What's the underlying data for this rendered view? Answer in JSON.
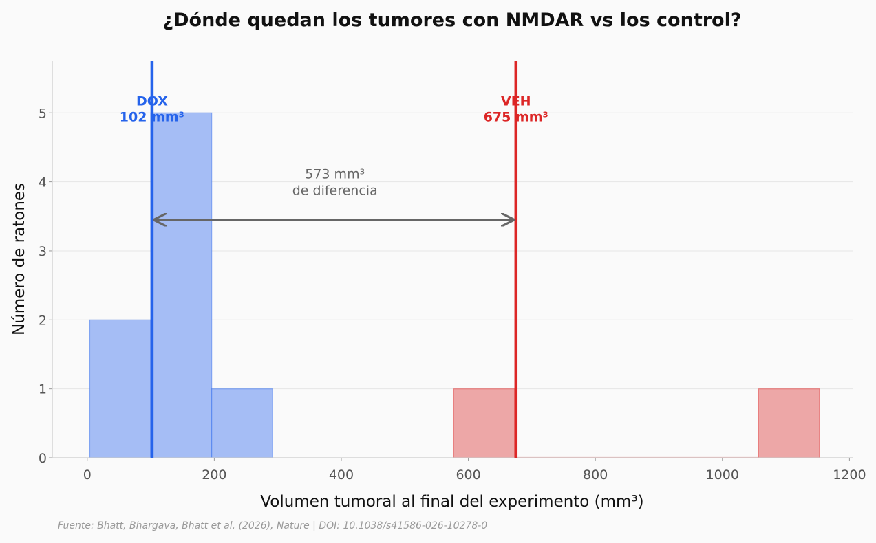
{
  "chart_data": {
    "type": "histogram",
    "title": "¿Dónde quedan los tumores con NMDAR vs los control?",
    "xlabel": "Volumen tumoral al final del experimento (mm³)",
    "ylabel": "Número de ratones",
    "xlim": [
      -55,
      1205
    ],
    "ylim": [
      0,
      5.75
    ],
    "xticks": [
      0,
      200,
      400,
      600,
      800,
      1000,
      1200
    ],
    "yticks": [
      0,
      1,
      2,
      3,
      4,
      5
    ],
    "grid": "horizontal",
    "series": [
      {
        "name": "DOX",
        "color": "#2563eb",
        "fill": "#a5bdf5",
        "bins": [
          {
            "x0": 4,
            "x1": 100,
            "count": 2
          },
          {
            "x0": 100,
            "x1": 196,
            "count": 5
          },
          {
            "x0": 196,
            "x1": 292,
            "count": 1
          }
        ],
        "mean_label": "DOX",
        "mean_value": 102,
        "mean_value_label": "102 mm³"
      },
      {
        "name": "VEH",
        "color": "#dc2626",
        "fill": "#eda7a7",
        "bins": [
          {
            "x0": 577,
            "x1": 673,
            "count": 1
          },
          {
            "x0": 673,
            "x1": 769,
            "count": 0
          },
          {
            "x0": 769,
            "x1": 865,
            "count": 0
          },
          {
            "x0": 865,
            "x1": 961,
            "count": 0
          },
          {
            "x0": 961,
            "x1": 1057,
            "count": 0
          },
          {
            "x0": 1057,
            "x1": 1153,
            "count": 1
          }
        ],
        "mean_label": "VEH",
        "mean_value": 675,
        "mean_value_label": "675 mm³"
      }
    ],
    "annotation": {
      "line1": "573 mm³",
      "line2": "de diferencia",
      "arrow_y": 3.45,
      "text_y": 4.05,
      "text_x": 390
    }
  },
  "footer": "Fuente: Bhatt, Bhargava, Bhatt et al. (2026), Nature | DOI: 10.1038/s41586-026-10278-0"
}
